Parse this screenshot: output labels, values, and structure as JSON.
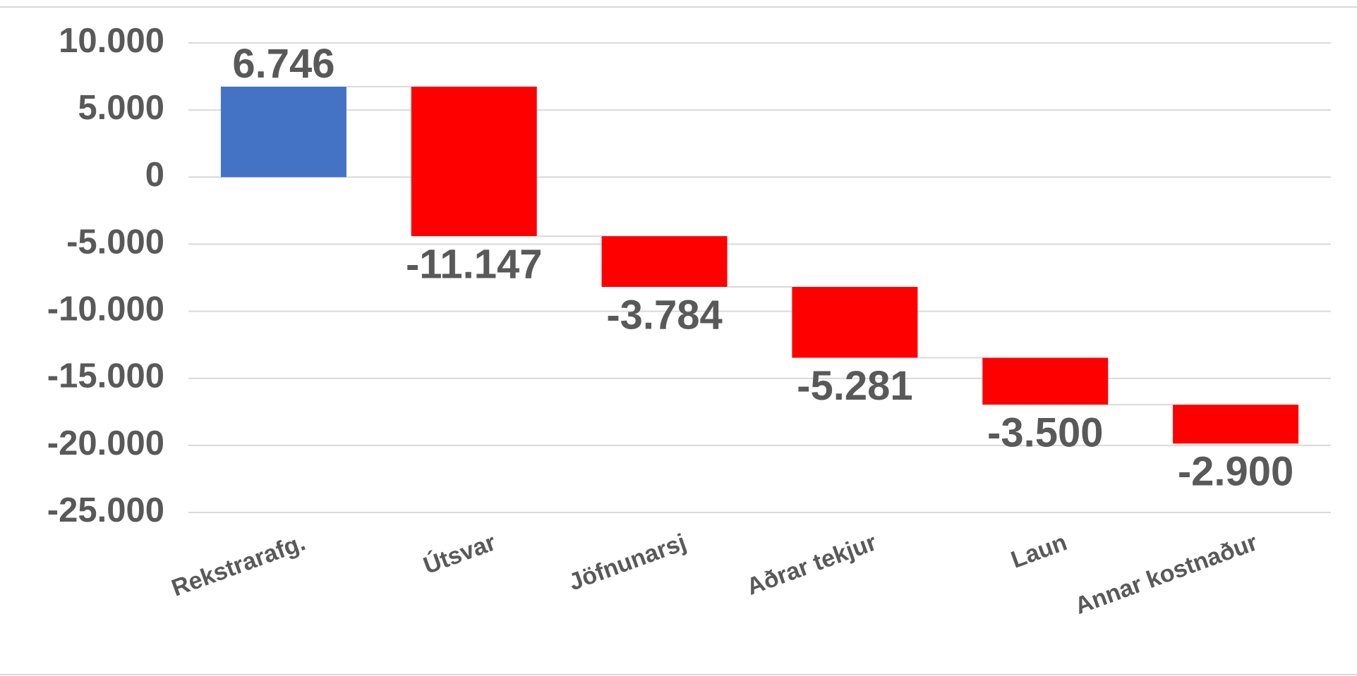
{
  "chart_data": {
    "type": "waterfall",
    "categories": [
      "Rekstrarafg.",
      "Útsvar",
      "Jöfnunarsj",
      "Aðrar tekjur",
      "Laun",
      "Annar kostnaður"
    ],
    "values": [
      6746,
      -11147,
      -3784,
      -5281,
      -3500,
      -2900
    ],
    "value_labels": [
      "6.746",
      "-11.147",
      "-3.784",
      "-5.281",
      "-3.500",
      "-2.900"
    ],
    "colors": [
      "#4472c4",
      "#ff0000",
      "#ff0000",
      "#ff0000",
      "#ff0000",
      "#ff0000"
    ],
    "ylim": [
      -25000,
      10000
    ],
    "yticks": [
      {
        "value": -25000,
        "label": "-25.000"
      },
      {
        "value": -20000,
        "label": "-20.000"
      },
      {
        "value": -15000,
        "label": "-15.000"
      },
      {
        "value": -10000,
        "label": "-10.000"
      },
      {
        "value": -5000,
        "label": "-5.000"
      },
      0,
      {
        "value": 5000,
        "label": "5.000"
      },
      {
        "value": 10000,
        "label": "10.000"
      }
    ],
    "grid": true
  }
}
